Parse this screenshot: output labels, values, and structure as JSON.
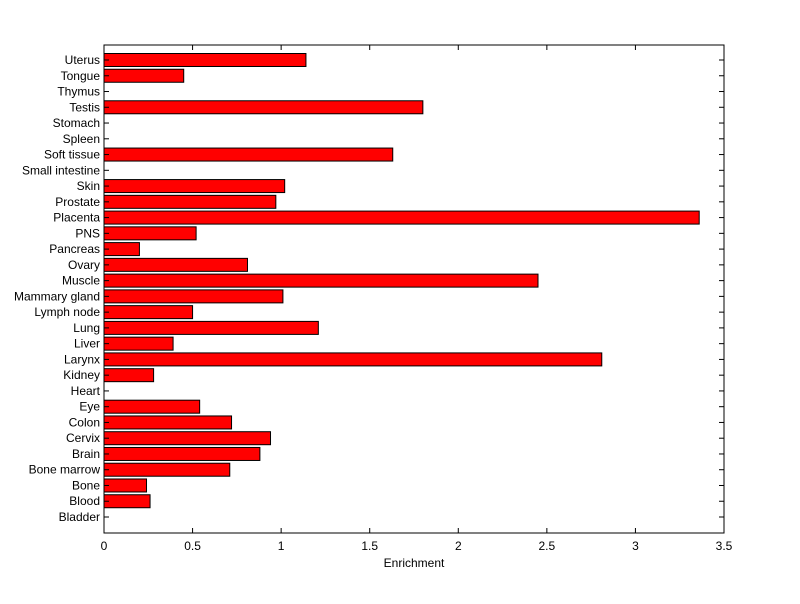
{
  "chart_data": {
    "type": "bar",
    "orientation": "horizontal",
    "title": "",
    "xlabel": "Enrichment",
    "ylabel": "",
    "xlim": [
      0,
      3.5
    ],
    "xticks": [
      0,
      0.5,
      1,
      1.5,
      2,
      2.5,
      3,
      3.5
    ],
    "xtick_labels": [
      "0",
      "0.5",
      "1",
      "1.5",
      "2",
      "2.5",
      "3",
      "3.5"
    ],
    "grid": false,
    "bar_color": "#ff0000",
    "bar_edge_color": "#000000",
    "categories": [
      "Bladder",
      "Blood",
      "Bone",
      "Bone marrow",
      "Brain",
      "Cervix",
      "Colon",
      "Eye",
      "Heart",
      "Kidney",
      "Larynx",
      "Liver",
      "Lung",
      "Lymph node",
      "Mammary gland",
      "Muscle",
      "Ovary",
      "Pancreas",
      "PNS",
      "Placenta",
      "Prostate",
      "Skin",
      "Small intestine",
      "Soft tissue",
      "Spleen",
      "Stomach",
      "Testis",
      "Thymus",
      "Tongue",
      "Uterus"
    ],
    "values": [
      0,
      0.26,
      0.24,
      0.71,
      0.88,
      0.94,
      0.72,
      0.54,
      0,
      0.28,
      2.81,
      0.39,
      1.21,
      0.5,
      1.01,
      2.45,
      0.81,
      0.2,
      0.52,
      3.36,
      0.97,
      1.02,
      0,
      1.63,
      0,
      0,
      1.8,
      0,
      0.45,
      1.14
    ]
  }
}
